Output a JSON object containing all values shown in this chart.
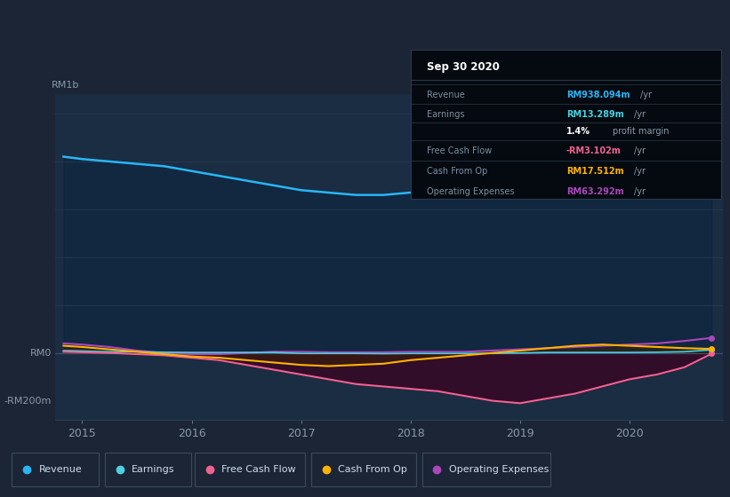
{
  "bg_color": "#1c2535",
  "plot_bg_color": "#1a2d42",
  "grid_color": "#2a3f55",
  "title_text": "Sep 30 2020",
  "ylabel_top": "RM1b",
  "ylabel_mid": "RM0",
  "ylabel_bot": "-RM200m",
  "ylim_min": -280,
  "ylim_max": 1080,
  "legend": [
    {
      "label": "Revenue",
      "color": "#29b6f6"
    },
    {
      "label": "Earnings",
      "color": "#4dd0e1"
    },
    {
      "label": "Free Cash Flow",
      "color": "#f06292"
    },
    {
      "label": "Cash From Op",
      "color": "#ffb300"
    },
    {
      "label": "Operating Expenses",
      "color": "#ab47bc"
    }
  ],
  "x_years": [
    2014.83,
    2015.0,
    2015.25,
    2015.5,
    2015.75,
    2016.0,
    2016.25,
    2016.5,
    2016.75,
    2017.0,
    2017.25,
    2017.5,
    2017.75,
    2018.0,
    2018.25,
    2018.5,
    2018.75,
    2019.0,
    2019.25,
    2019.5,
    2019.75,
    2020.0,
    2020.25,
    2020.5,
    2020.75
  ],
  "Revenue": [
    820,
    810,
    800,
    790,
    780,
    760,
    740,
    720,
    700,
    680,
    670,
    660,
    660,
    670,
    675,
    680,
    690,
    720,
    740,
    750,
    745,
    740,
    730,
    680,
    940
  ],
  "Earnings": [
    10,
    8,
    5,
    5,
    3,
    2,
    2,
    2,
    2,
    -2,
    -2,
    -2,
    -3,
    -2,
    -2,
    -2,
    -2,
    0,
    2,
    2,
    2,
    2,
    3,
    5,
    13
  ],
  "FreeCashFlow": [
    5,
    3,
    0,
    -5,
    -10,
    -20,
    -30,
    -50,
    -70,
    -90,
    -110,
    -130,
    -140,
    -150,
    -160,
    -180,
    -200,
    -210,
    -190,
    -170,
    -140,
    -110,
    -90,
    -60,
    -3
  ],
  "CashFromOp": [
    30,
    25,
    15,
    5,
    -5,
    -15,
    -20,
    -30,
    -40,
    -50,
    -55,
    -50,
    -45,
    -30,
    -20,
    -10,
    0,
    10,
    20,
    30,
    35,
    30,
    25,
    20,
    17
  ],
  "OperatingExpenses": [
    40,
    35,
    25,
    10,
    0,
    -5,
    -5,
    0,
    5,
    5,
    3,
    3,
    3,
    5,
    5,
    5,
    10,
    15,
    20,
    25,
    30,
    35,
    40,
    50,
    63
  ]
}
